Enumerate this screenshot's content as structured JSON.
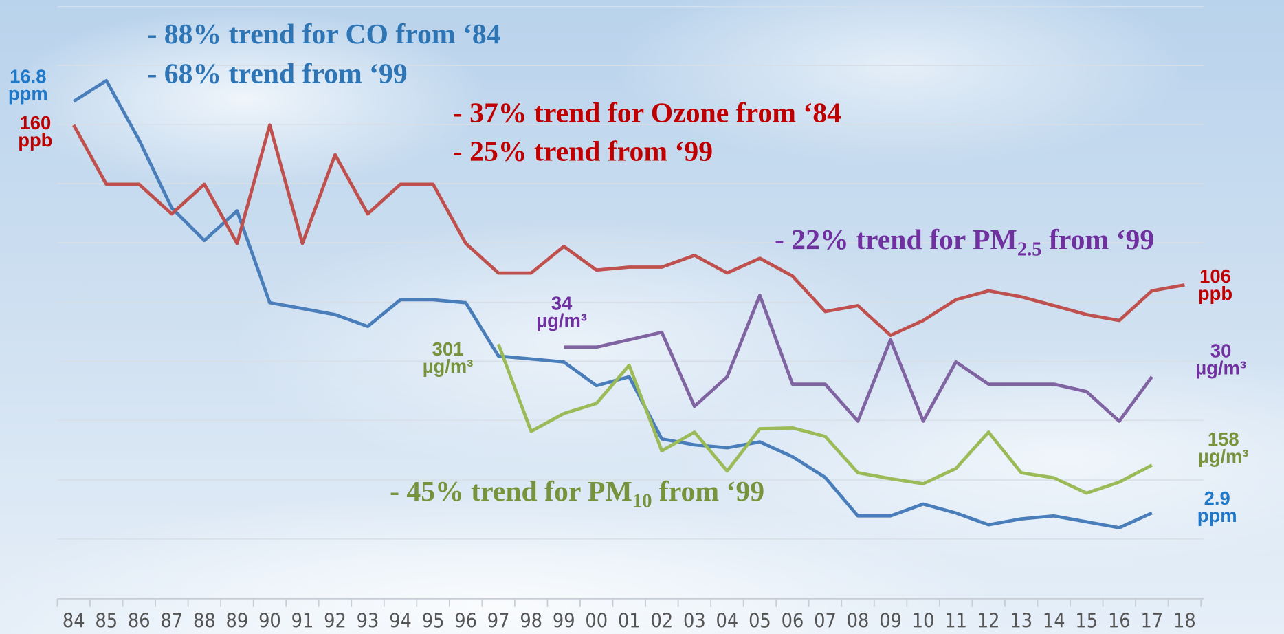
{
  "chart_data": {
    "type": "line",
    "categories": [
      "84",
      "85",
      "86",
      "87",
      "88",
      "89",
      "90",
      "91",
      "92",
      "93",
      "94",
      "95",
      "96",
      "97",
      "98",
      "99",
      "00",
      "01",
      "02",
      "03",
      "04",
      "05",
      "06",
      "07",
      "08",
      "09",
      "10",
      "11",
      "12",
      "13",
      "14",
      "15",
      "16",
      "17",
      "18"
    ],
    "annotations": [
      {
        "text": "- 88% trend for CO from ‘84",
        "color": "#2e75b6"
      },
      {
        "text": "- 68% trend from ‘99",
        "color": "#2e75b6"
      },
      {
        "text": "- 37% trend for Ozone from ‘84",
        "color": "#c00000"
      },
      {
        "text": "- 25% trend from ‘99",
        "color": "#c00000"
      },
      {
        "text": "- 22% trend for PM",
        "sub": "2.5",
        "text_after": " from ‘99",
        "color": "#7030a0"
      },
      {
        "text": "- 45% trend for PM",
        "sub": "10",
        "text_after": " from ‘99",
        "color": "#77933c"
      }
    ],
    "series": [
      {
        "color": "#4a7ebb",
        "label_color": "#1f78c8",
        "ylim": [
          0,
          20
        ],
        "values": [
          16.8,
          17.5,
          15.5,
          13.2,
          12.1,
          13.1,
          10,
          9.8,
          9.6,
          9.2,
          10.1,
          10.1,
          10,
          8.2,
          8.1,
          8,
          7.2,
          7.5,
          5.4,
          5.2,
          5.1,
          5.3,
          4.8,
          4.1,
          2.8,
          2.8,
          3.2,
          2.9,
          2.5,
          2.7,
          2.8,
          2.6,
          2.4,
          2.9,
          null
        ],
        "value_labels": [
          "16.8 ppm",
          null,
          null,
          null,
          null,
          null,
          null,
          null,
          null,
          null,
          null,
          null,
          null,
          null,
          null,
          null,
          null,
          null,
          null,
          null,
          null,
          null,
          null,
          null,
          null,
          null,
          null,
          null,
          null,
          null,
          null,
          null,
          null,
          "2.9 ppm",
          null
        ]
      },
      {
        "color": "#c0504d",
        "label_color": "#c00000",
        "ylim": [
          0,
          200
        ],
        "values": [
          160,
          140,
          140,
          130,
          140,
          120,
          160,
          120,
          150,
          130,
          140,
          140,
          120,
          110,
          110,
          119,
          111,
          112,
          112,
          116,
          110,
          115,
          109,
          97,
          99,
          89,
          94,
          101,
          104,
          102,
          99,
          96,
          94,
          104,
          106
        ],
        "value_labels": [
          "160 ppb",
          null,
          null,
          null,
          null,
          null,
          null,
          null,
          null,
          null,
          null,
          null,
          null,
          null,
          null,
          null,
          null,
          null,
          null,
          null,
          null,
          null,
          null,
          null,
          null,
          null,
          null,
          null,
          null,
          null,
          null,
          null,
          null,
          null,
          "106 ppb"
        ]
      },
      {
        "color": "#8064a2",
        "label_color": "#7030a0",
        "ylim": [
          0,
          80
        ],
        "values": [
          null,
          null,
          null,
          null,
          null,
          null,
          null,
          null,
          null,
          null,
          null,
          null,
          null,
          null,
          null,
          34,
          34,
          35,
          36,
          26,
          30,
          41,
          29,
          29,
          24,
          35,
          24,
          32,
          29,
          29,
          29,
          28,
          24,
          30,
          null
        ],
        "value_labels": [
          null,
          null,
          null,
          null,
          null,
          null,
          null,
          null,
          null,
          null,
          null,
          null,
          null,
          null,
          null,
          "34 µg/m³",
          null,
          null,
          null,
          null,
          null,
          null,
          null,
          null,
          null,
          null,
          null,
          null,
          null,
          null,
          null,
          null,
          null,
          "30 µg/m³",
          null
        ]
      },
      {
        "color": "#9bbb59",
        "label_color": "#77933c",
        "ylim": [
          0,
          700
        ],
        "values": [
          null,
          null,
          null,
          null,
          null,
          null,
          null,
          null,
          null,
          null,
          null,
          null,
          null,
          301,
          198,
          219,
          231,
          276,
          175,
          197,
          151,
          201,
          202,
          192,
          149,
          142,
          136,
          154,
          197,
          149,
          143,
          125,
          138,
          158,
          null
        ],
        "value_labels": [
          null,
          null,
          null,
          null,
          null,
          null,
          null,
          null,
          null,
          null,
          null,
          null,
          null,
          "301 µg/m³",
          null,
          null,
          null,
          null,
          null,
          null,
          null,
          null,
          null,
          null,
          null,
          null,
          null,
          null,
          null,
          null,
          null,
          null,
          null,
          "158 µg/m³",
          null
        ]
      }
    ]
  }
}
